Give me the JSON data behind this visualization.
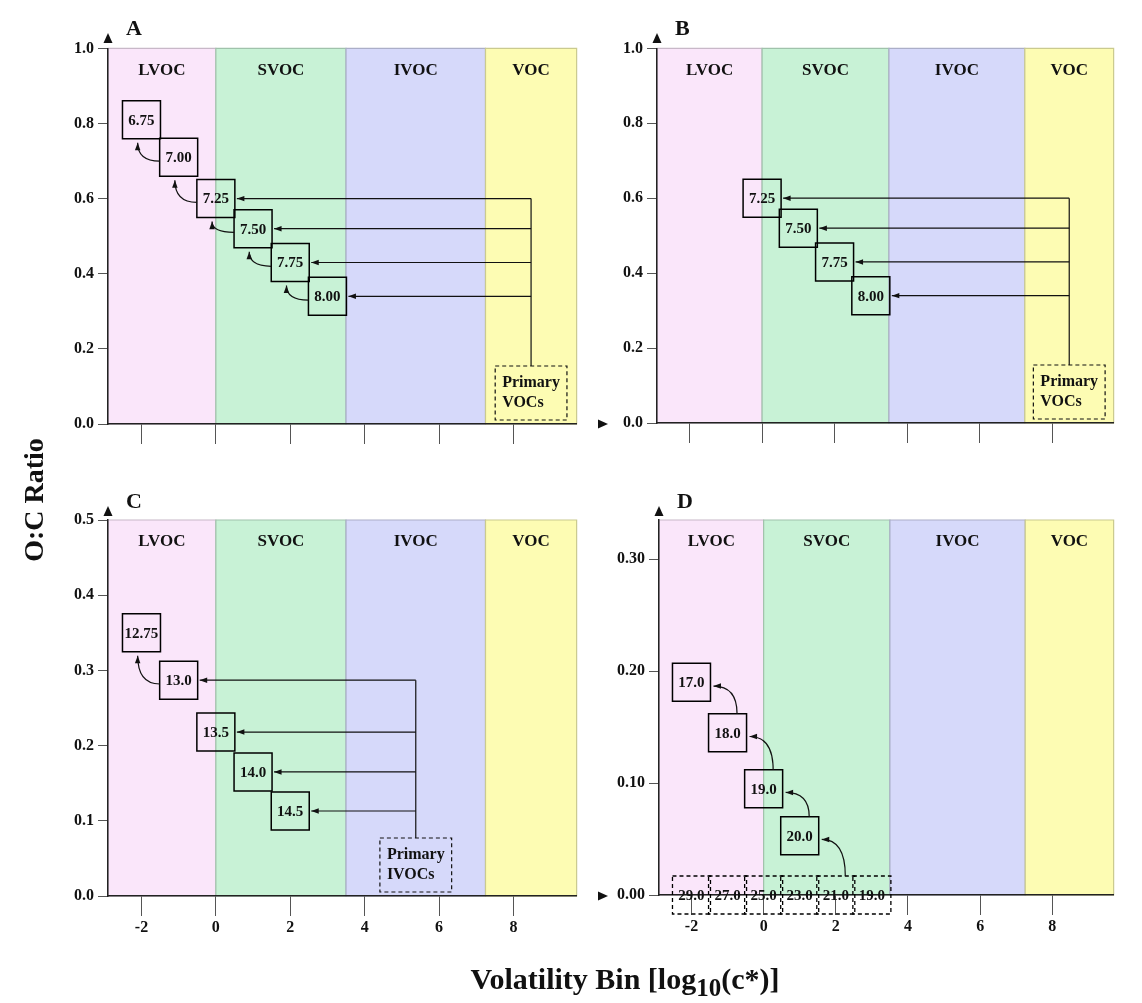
{
  "chart_data": [
    {
      "type": "scatter",
      "title": "A",
      "ylabel": "O:C Ratio",
      "marker": "square",
      "tick_labels": "y",
      "xlim": [
        -2.9,
        9.7
      ],
      "xticks": [
        -2,
        0,
        2,
        4,
        6,
        8
      ],
      "ylim": [
        0,
        1
      ],
      "yticks": [
        {
          "value": 0,
          "label": "0.0"
        },
        0.2,
        0.4,
        0.6,
        0.8,
        {
          "value": 1,
          "label": "1.0"
        }
      ],
      "series": [
        {
          "color": "#000000",
          "x": [
            -2,
            -1
          ],
          "values": [
            0.81,
            0.71
          ]
        },
        {
          "color": "#000000",
          "x": [
            0,
            1,
            2,
            3
          ],
          "values": [
            0.6,
            0.52,
            0.43,
            0.34
          ]
        }
      ],
      "bands": [
        {
          "axis": "x",
          "from": -2.9,
          "to": 0,
          "label": "LVOC",
          "color": "#fae6fa"
        },
        {
          "axis": "x",
          "from": 0,
          "to": 3.5,
          "label": "SVOC",
          "color": "#c8f2d6"
        },
        {
          "axis": "x",
          "from": 3.5,
          "to": 7.25,
          "label": "IVOC",
          "color": "#d6d9fa"
        },
        {
          "axis": "x",
          "from": 7.25,
          "to": 9.7,
          "label": "VOC",
          "color": "#fdfcb3"
        }
      ],
      "annotations": [
        "Primary VOCs",
        {
          "text": "6.75",
          "x": -2,
          "y": 0.81
        },
        {
          "text": "7.00",
          "x": -1,
          "y": 0.71
        },
        {
          "text": "7.25",
          "x": 0,
          "y": 0.6
        },
        {
          "text": "7.50",
          "x": 1,
          "y": 0.52
        },
        {
          "text": "7.75",
          "x": 2,
          "y": 0.43
        },
        {
          "text": "8.00",
          "x": 3,
          "y": 0.34
        }
      ]
    },
    {
      "type": "scatter",
      "title": "B",
      "marker": "square",
      "tick_labels": "y",
      "xlim": [
        -2.9,
        9.7
      ],
      "xticks": [
        -2,
        0,
        2,
        4,
        6,
        8
      ],
      "ylim": [
        0,
        1
      ],
      "yticks": [
        {
          "value": 0,
          "label": "0.0"
        },
        0.2,
        0.4,
        0.6,
        0.8,
        {
          "value": 1,
          "label": "1.0"
        }
      ],
      "series": [
        {
          "color": "#000000",
          "x": [
            0,
            1,
            2,
            3
          ],
          "values": [
            0.6,
            0.52,
            0.43,
            0.34
          ]
        }
      ],
      "bands": [
        {
          "axis": "x",
          "from": -2.9,
          "to": 0,
          "label": "LVOC",
          "color": "#fae6fa"
        },
        {
          "axis": "x",
          "from": 0,
          "to": 3.5,
          "label": "SVOC",
          "color": "#c8f2d6"
        },
        {
          "axis": "x",
          "from": 3.5,
          "to": 7.25,
          "label": "IVOC",
          "color": "#d6d9fa"
        },
        {
          "axis": "x",
          "from": 7.25,
          "to": 9.7,
          "label": "VOC",
          "color": "#fdfcb3"
        }
      ],
      "annotations": [
        "Primary VOCs",
        {
          "text": "7.25",
          "x": 0,
          "y": 0.6
        },
        {
          "text": "7.50",
          "x": 1,
          "y": 0.52
        },
        {
          "text": "7.75",
          "x": 2,
          "y": 0.43
        },
        {
          "text": "8.00",
          "x": 3,
          "y": 0.34
        }
      ]
    },
    {
      "type": "scatter",
      "title": "C",
      "xlabel": "Volatility Bin [log$_{10}$(c*)]",
      "marker": "square",
      "xlim": [
        -2.9,
        9.7
      ],
      "xticks": [
        -2,
        0,
        2,
        4,
        6,
        8
      ],
      "ylim": [
        0,
        0.5
      ],
      "yticks": [
        {
          "value": 0,
          "label": "0.0"
        },
        0.1,
        0.2,
        0.3,
        0.4,
        0.5
      ],
      "series": [
        {
          "color": "#000000",
          "x": [
            -2
          ],
          "values": [
            0.35
          ]
        },
        {
          "color": "#000000",
          "x": [
            -1,
            0,
            1,
            2
          ],
          "values": [
            0.287,
            0.218,
            0.165,
            0.113
          ]
        }
      ],
      "bands": [
        {
          "axis": "x",
          "from": -2.9,
          "to": 0,
          "label": "LVOC",
          "color": "#fae6fa"
        },
        {
          "axis": "x",
          "from": 0,
          "to": 3.5,
          "label": "SVOC",
          "color": "#c8f2d6"
        },
        {
          "axis": "x",
          "from": 3.5,
          "to": 7.25,
          "label": "IVOC",
          "color": "#d6d9fa"
        },
        {
          "axis": "x",
          "from": 7.25,
          "to": 9.7,
          "label": "VOC",
          "color": "#fdfcb3"
        }
      ],
      "annotations": [
        "Primary IVOCs",
        {
          "text": "12.75",
          "x": -2,
          "y": 0.35
        },
        {
          "text": "13.0",
          "x": -1,
          "y": 0.287
        },
        {
          "text": "13.5",
          "x": 0,
          "y": 0.218
        },
        {
          "text": "14.0",
          "x": 1,
          "y": 0.165
        },
        {
          "text": "14.5",
          "x": 2,
          "y": 0.113
        }
      ]
    },
    {
      "type": "scatter",
      "title": "D",
      "marker": "square",
      "xlim": [
        -2.9,
        9.7
      ],
      "xticks": [
        -2,
        0,
        2,
        4,
        6,
        8
      ],
      "ylim": [
        0,
        0.335
      ],
      "yticks": [
        {
          "value": 0,
          "label": "0.00"
        },
        {
          "value": 0.1,
          "label": "0.10"
        },
        {
          "value": 0.2,
          "label": "0.20"
        },
        {
          "value": 0.3,
          "label": "0.30"
        }
      ],
      "series": [
        {
          "color": "#000000",
          "x": [
            -2,
            -1,
            0,
            1
          ],
          "values": [
            0.19,
            0.145,
            0.095,
            0.053
          ]
        },
        {
          "color": "#000000",
          "line_style": "dashed",
          "x": [
            -2,
            -1,
            0,
            1,
            2,
            3
          ],
          "values": [
            0,
            0,
            0,
            0,
            0,
            0
          ]
        }
      ],
      "bands": [
        {
          "axis": "x",
          "from": -2.9,
          "to": 0,
          "label": "LVOC",
          "color": "#fae6fa"
        },
        {
          "axis": "x",
          "from": 0,
          "to": 3.5,
          "label": "SVOC",
          "color": "#c8f2d6"
        },
        {
          "axis": "x",
          "from": 3.5,
          "to": 7.25,
          "label": "IVOC",
          "color": "#d6d9fa"
        },
        {
          "axis": "x",
          "from": 7.25,
          "to": 9.7,
          "label": "VOC",
          "color": "#fdfcb3"
        }
      ],
      "annotations": [
        {
          "text": "17.0",
          "x": -2,
          "y": 0.19
        },
        {
          "text": "18.0",
          "x": -1,
          "y": 0.145
        },
        {
          "text": "19.0",
          "x": 0,
          "y": 0.095
        },
        {
          "text": "20.0",
          "x": 1,
          "y": 0.053
        },
        {
          "text": "29.0",
          "x": -2,
          "y": 0
        },
        {
          "text": "27.0",
          "x": -1,
          "y": 0
        },
        {
          "text": "25.0",
          "x": 0,
          "y": 0
        },
        {
          "text": "23.0",
          "x": 1,
          "y": 0
        },
        {
          "text": "21.0",
          "x": 2,
          "y": 0
        },
        {
          "text": "19.0",
          "x": 3,
          "y": 0
        }
      ]
    }
  ]
}
